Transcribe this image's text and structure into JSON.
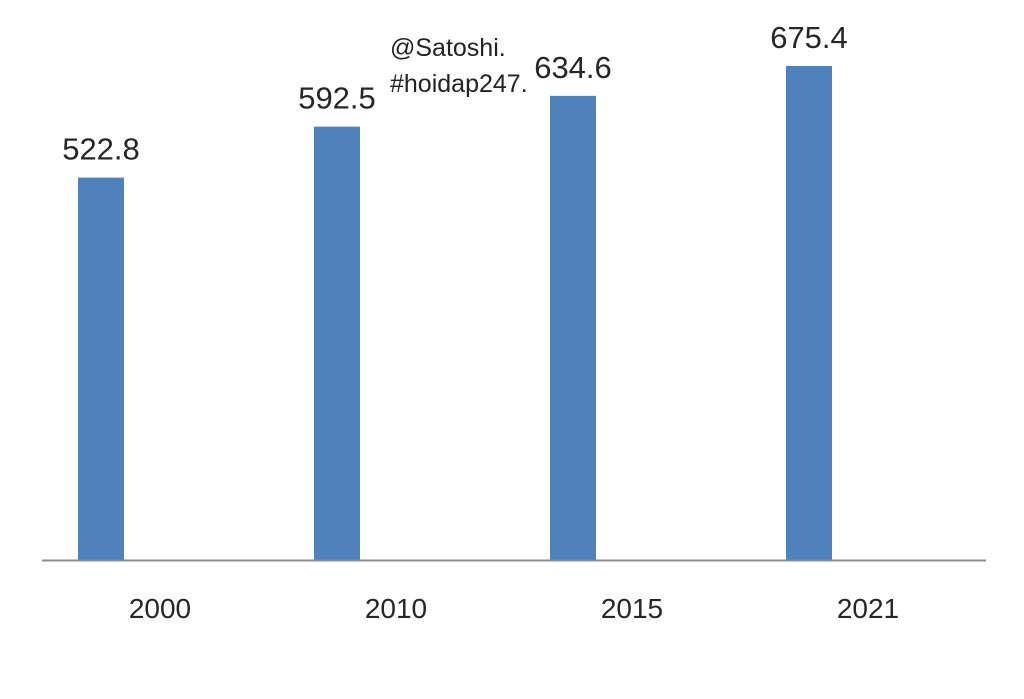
{
  "watermark": {
    "line1": "@Satoshi.",
    "line2": "#hoidap247."
  },
  "chart_data": {
    "type": "bar",
    "title": "",
    "xlabel": "",
    "ylabel": "",
    "categories": [
      "2000",
      "2010",
      "2015",
      "2021"
    ],
    "values": [
      522.8,
      592.5,
      634.6,
      675.4
    ],
    "value_labels": [
      "522.8",
      "592.5",
      "634.6",
      "675.4"
    ],
    "ylim": [
      0,
      700
    ],
    "grid": false,
    "legend": "none",
    "bar_color": "#4f81bd",
    "axis_color": "#8c8c8c"
  }
}
